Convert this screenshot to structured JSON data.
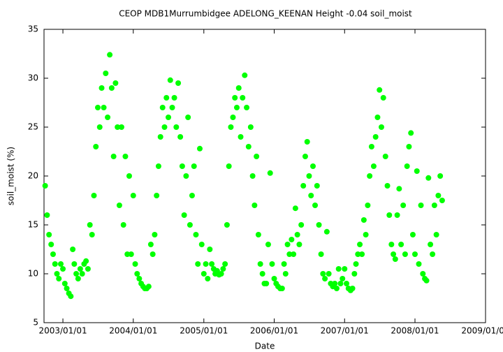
{
  "chart_data": {
    "type": "scatter",
    "title": "CEOP MDB1Murrumbidgee ADELONG_KEENAN Height -0.04 soil_moist",
    "x_label": "Date",
    "y_label": "soil_moist (%)",
    "color": "#00ff00",
    "xlim": [
      "2002/09/25",
      "2009/01/01"
    ],
    "xticks": [
      "2003/01/01",
      "2004/01/01",
      "2005/01/01",
      "2006/01/01",
      "2007/01/01",
      "2008/01/01",
      "2009/01/01"
    ],
    "ylim": [
      5,
      35
    ],
    "yticks": [
      5,
      10,
      15,
      20,
      25,
      30,
      35
    ],
    "x": [
      "2002/10/01",
      "2002/10/11",
      "2002/10/21",
      "2002/11/01",
      "2002/11/11",
      "2002/11/21",
      "2002/12/01",
      "2002/12/11",
      "2002/12/21",
      "2003/01/01",
      "2003/01/11",
      "2003/01/21",
      "2003/02/01",
      "2003/02/11",
      "2003/02/21",
      "2003/03/01",
      "2003/03/11",
      "2003/03/21",
      "2003/04/01",
      "2003/04/11",
      "2003/04/21",
      "2003/05/01",
      "2003/05/11",
      "2003/05/21",
      "2003/06/01",
      "2003/06/11",
      "2003/06/21",
      "2003/07/01",
      "2003/07/11",
      "2003/07/21",
      "2003/08/01",
      "2003/08/11",
      "2003/08/21",
      "2003/09/01",
      "2003/09/11",
      "2003/09/21",
      "2003/10/01",
      "2003/10/11",
      "2003/10/21",
      "2003/11/01",
      "2003/11/11",
      "2003/11/21",
      "2003/12/01",
      "2003/12/11",
      "2003/12/21",
      "2004/01/01",
      "2004/01/11",
      "2004/01/21",
      "2004/02/01",
      "2004/02/11",
      "2004/02/21",
      "2004/03/01",
      "2004/03/11",
      "2004/03/21",
      "2004/04/01",
      "2004/04/11",
      "2004/04/21",
      "2004/05/01",
      "2004/05/11",
      "2004/05/21",
      "2004/06/01",
      "2004/06/11",
      "2004/06/21",
      "2004/07/01",
      "2004/07/11",
      "2004/07/21",
      "2004/08/01",
      "2004/08/11",
      "2004/08/21",
      "2004/09/01",
      "2004/09/11",
      "2004/09/21",
      "2004/10/01",
      "2004/10/11",
      "2004/10/21",
      "2004/11/01",
      "2004/11/11",
      "2004/11/21",
      "2004/12/01",
      "2004/12/11",
      "2004/12/21",
      "2005/01/01",
      "2005/01/11",
      "2005/01/21",
      "2005/02/01",
      "2005/02/11",
      "2005/02/21",
      "2005/03/01",
      "2005/03/11",
      "2005/03/21",
      "2005/04/01",
      "2005/04/11",
      "2005/04/21",
      "2005/05/01",
      "2005/05/11",
      "2005/05/21",
      "2005/06/01",
      "2005/06/11",
      "2005/06/21",
      "2005/07/01",
      "2005/07/11",
      "2005/07/21",
      "2005/08/01",
      "2005/08/11",
      "2005/08/21",
      "2005/09/01",
      "2005/09/11",
      "2005/09/21",
      "2005/10/01",
      "2005/10/11",
      "2005/10/21",
      "2005/11/01",
      "2005/11/11",
      "2005/11/21",
      "2005/12/01",
      "2005/12/11",
      "2005/12/21",
      "2006/01/01",
      "2006/01/11",
      "2006/01/21",
      "2006/02/01",
      "2006/02/11",
      "2006/02/21",
      "2006/03/01",
      "2006/03/11",
      "2006/03/21",
      "2006/04/01",
      "2006/04/11",
      "2006/04/21",
      "2006/05/01",
      "2006/05/11",
      "2006/05/21",
      "2006/06/01",
      "2006/06/11",
      "2006/06/21",
      "2006/07/01",
      "2006/07/11",
      "2006/07/21",
      "2006/08/01",
      "2006/08/11",
      "2006/08/21",
      "2006/09/01",
      "2006/09/11",
      "2006/09/21",
      "2006/10/01",
      "2006/10/11",
      "2006/10/21",
      "2006/11/01",
      "2006/11/11",
      "2006/11/21",
      "2006/12/01",
      "2006/12/11",
      "2006/12/21",
      "2007/01/01",
      "2007/01/11",
      "2007/01/21",
      "2007/02/01",
      "2007/02/11",
      "2007/02/21",
      "2007/03/01",
      "2007/03/11",
      "2007/03/21",
      "2007/04/01",
      "2007/04/11",
      "2007/04/21",
      "2007/05/01",
      "2007/05/11",
      "2007/05/21",
      "2007/06/01",
      "2007/06/11",
      "2007/06/21",
      "2007/07/01",
      "2007/07/11",
      "2007/07/21",
      "2007/08/01",
      "2007/08/11",
      "2007/08/21",
      "2007/09/01",
      "2007/09/11",
      "2007/09/21",
      "2007/10/01",
      "2007/10/11",
      "2007/10/21",
      "2007/11/01",
      "2007/11/11",
      "2007/11/21",
      "2007/12/01",
      "2007/12/11",
      "2007/12/21",
      "2008/01/01",
      "2008/01/11",
      "2008/01/21",
      "2008/02/01",
      "2008/02/11",
      "2008/02/21",
      "2008/03/01",
      "2008/03/11",
      "2008/03/21",
      "2008/04/01",
      "2008/04/11",
      "2008/04/21",
      "2008/05/01",
      "2008/05/11",
      "2008/05/21"
    ],
    "values": [
      19,
      16,
      14,
      13,
      12,
      11,
      10,
      9.5,
      11,
      10.5,
      9,
      8.5,
      8,
      7.7,
      12.5,
      11,
      10,
      9.5,
      10.5,
      10,
      11,
      11.3,
      10.5,
      15,
      14,
      18,
      23,
      27,
      25,
      29,
      27,
      30.5,
      26,
      32.4,
      29,
      22,
      29.5,
      25,
      17,
      25,
      15,
      22,
      12,
      20,
      12,
      18,
      11,
      10,
      9.5,
      9,
      8.7,
      8.5,
      8.5,
      8.7,
      13,
      12,
      14,
      18,
      21,
      24,
      27,
      25,
      28,
      26,
      29.8,
      27,
      28,
      25,
      29.5,
      24,
      21,
      16,
      20,
      26,
      15,
      18,
      21,
      14,
      11,
      22.8,
      13,
      10,
      11,
      9.5,
      12.5,
      11,
      10.5,
      10,
      10.3,
      9.9,
      10,
      10.5,
      11,
      15,
      21,
      25,
      26,
      28,
      27,
      29,
      24,
      28,
      30.3,
      27,
      23,
      25,
      20,
      17,
      22,
      14,
      11,
      10,
      9,
      9,
      13,
      20.3,
      11,
      9.5,
      9,
      8.7,
      8.5,
      8.5,
      11,
      10,
      13,
      12,
      13.5,
      12,
      16.7,
      14,
      13,
      15,
      19,
      22,
      23.5,
      20,
      18,
      21,
      17,
      19,
      15,
      12,
      10,
      9.5,
      14.3,
      10,
      9,
      8.7,
      9,
      8.5,
      10.5,
      9,
      9.5,
      10.5,
      9,
      8.5,
      8.3,
      8.5,
      10,
      11,
      12,
      13,
      12,
      15.5,
      14,
      17,
      20,
      23,
      21,
      24,
      26,
      28.8,
      25,
      28,
      22,
      19,
      16,
      13,
      12,
      11.5,
      16,
      18.7,
      13,
      17,
      12,
      21,
      23,
      24.4,
      14,
      12,
      20.5,
      11,
      17,
      10,
      9.5,
      9.3,
      19.8,
      13,
      12,
      17,
      14,
      18,
      20,
      17.5
    ]
  }
}
